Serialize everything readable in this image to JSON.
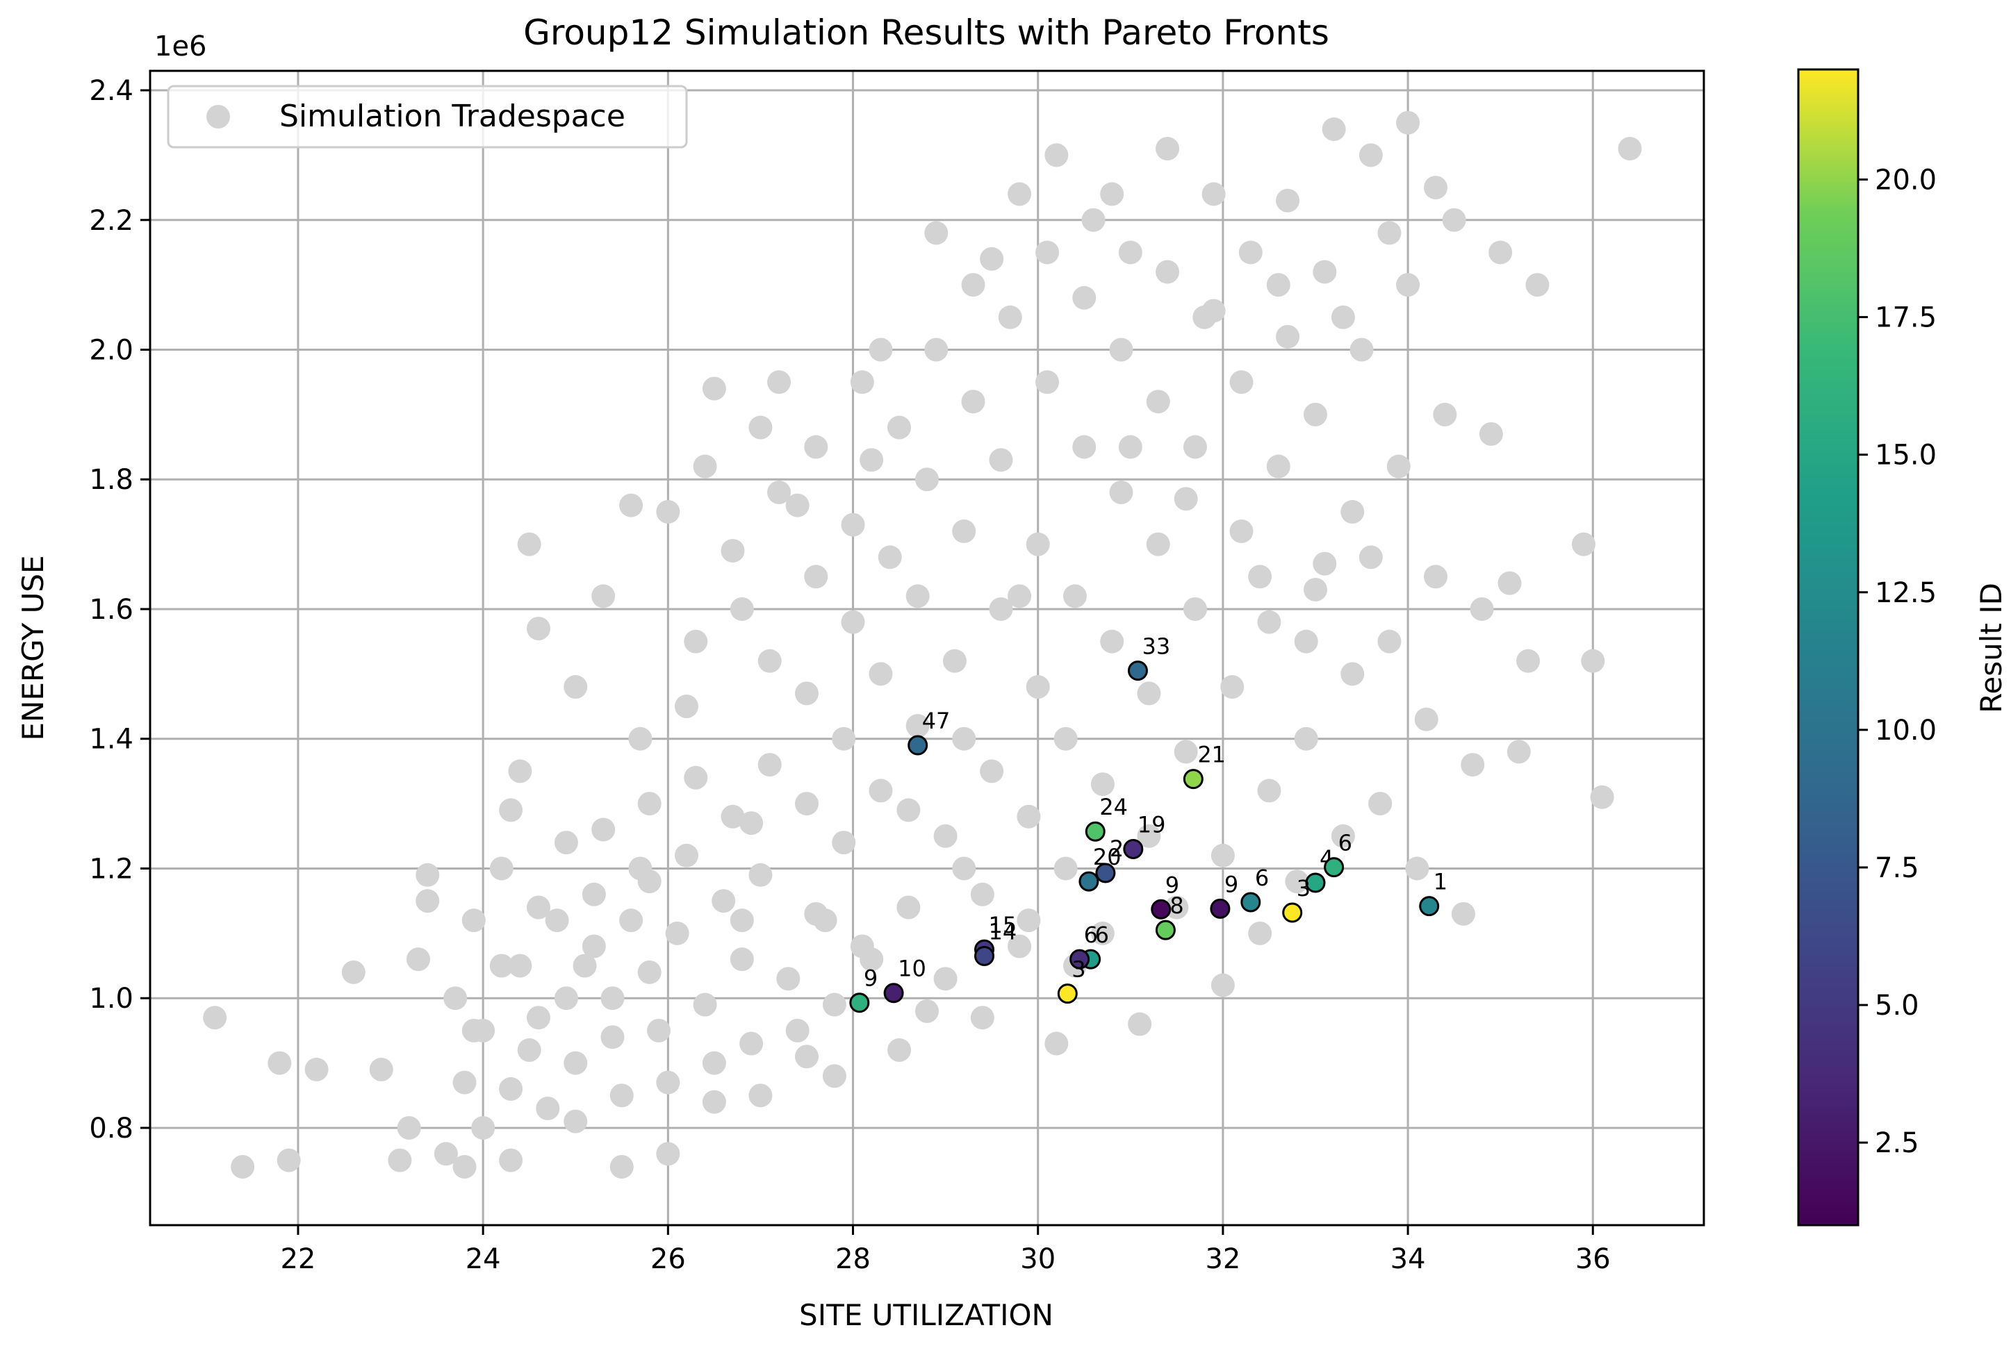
{
  "chart_data": {
    "type": "scatter",
    "title": "Group12 Simulation Results with Pareto Fronts",
    "xlabel": "SITE UTILIZATION",
    "ylabel": "ENERGY USE",
    "y_offset_label": "1e6",
    "xlim": [
      20.4,
      37.2
    ],
    "ylim": [
      0.65,
      2.43
    ],
    "x_ticks": [
      22,
      24,
      26,
      28,
      30,
      32,
      34,
      36
    ],
    "x_tick_labels": [
      "22",
      "24",
      "26",
      "28",
      "30",
      "32",
      "34",
      "36"
    ],
    "y_ticks": [
      0.8,
      1.0,
      1.2,
      1.4,
      1.6,
      1.8,
      2.0,
      2.2,
      2.4
    ],
    "y_tick_labels": [
      "0.8",
      "1.0",
      "1.2",
      "1.4",
      "1.6",
      "1.8",
      "2.0",
      "2.2",
      "2.4"
    ],
    "grid": true,
    "legend": {
      "position": "top-left",
      "entries": [
        "Simulation Tradespace"
      ]
    },
    "background_series": {
      "name": "Simulation Tradespace",
      "color": "#d3d3d3",
      "points": [
        [
          21.1,
          0.97
        ],
        [
          21.4,
          0.74
        ],
        [
          21.8,
          0.9
        ],
        [
          21.9,
          0.75
        ],
        [
          22.2,
          0.89
        ],
        [
          22.6,
          1.04
        ],
        [
          22.9,
          0.89
        ],
        [
          23.1,
          0.75
        ],
        [
          23.2,
          0.8
        ],
        [
          23.4,
          1.19
        ],
        [
          23.4,
          1.15
        ],
        [
          23.3,
          1.06
        ],
        [
          23.6,
          0.76
        ],
        [
          23.7,
          1.0
        ],
        [
          23.8,
          0.87
        ],
        [
          23.8,
          0.74
        ],
        [
          23.9,
          1.12
        ],
        [
          24.0,
          0.95
        ],
        [
          24.0,
          0.8
        ],
        [
          24.2,
          1.2
        ],
        [
          24.3,
          0.86
        ],
        [
          24.3,
          0.75
        ],
        [
          24.3,
          1.29
        ],
        [
          24.4,
          1.35
        ],
        [
          24.4,
          1.05
        ],
        [
          24.5,
          0.92
        ],
        [
          24.6,
          1.14
        ],
        [
          24.6,
          0.97
        ],
        [
          24.7,
          0.83
        ],
        [
          24.8,
          1.12
        ],
        [
          24.9,
          1.0
        ],
        [
          25.0,
          0.9
        ],
        [
          25.0,
          0.81
        ],
        [
          25.1,
          1.05
        ],
        [
          25.2,
          1.16
        ],
        [
          25.3,
          1.26
        ],
        [
          25.2,
          1.08
        ],
        [
          25.4,
          1.0
        ],
        [
          25.4,
          0.94
        ],
        [
          25.5,
          0.85
        ],
        [
          25.5,
          0.74
        ],
        [
          25.6,
          1.12
        ],
        [
          25.7,
          1.2
        ],
        [
          25.7,
          1.4
        ],
        [
          25.8,
          1.3
        ],
        [
          25.8,
          1.04
        ],
        [
          25.9,
          0.95
        ],
        [
          26.0,
          0.87
        ],
        [
          26.0,
          0.76
        ],
        [
          26.1,
          1.1
        ],
        [
          26.2,
          1.22
        ],
        [
          26.2,
          1.45
        ],
        [
          26.3,
          1.55
        ],
        [
          26.3,
          1.34
        ],
        [
          26.4,
          0.99
        ],
        [
          26.5,
          0.9
        ],
        [
          26.5,
          0.84
        ],
        [
          26.6,
          1.15
        ],
        [
          26.7,
          1.28
        ],
        [
          26.7,
          1.69
        ],
        [
          26.8,
          1.6
        ],
        [
          26.8,
          1.06
        ],
        [
          26.9,
          0.93
        ],
        [
          27.0,
          0.85
        ],
        [
          27.0,
          1.19
        ],
        [
          27.1,
          1.36
        ],
        [
          27.1,
          1.52
        ],
        [
          27.2,
          1.78
        ],
        [
          27.2,
          1.95
        ],
        [
          27.3,
          1.03
        ],
        [
          27.4,
          0.95
        ],
        [
          27.5,
          1.3
        ],
        [
          27.5,
          1.47
        ],
        [
          27.6,
          1.65
        ],
        [
          27.6,
          1.85
        ],
        [
          27.7,
          1.12
        ],
        [
          27.8,
          0.99
        ],
        [
          27.8,
          0.88
        ],
        [
          27.9,
          1.24
        ],
        [
          27.9,
          1.4
        ],
        [
          28.0,
          1.58
        ],
        [
          28.0,
          1.73
        ],
        [
          28.1,
          1.95
        ],
        [
          28.2,
          1.06
        ],
        [
          28.3,
          1.32
        ],
        [
          28.3,
          1.5
        ],
        [
          28.4,
          1.68
        ],
        [
          28.5,
          1.88
        ],
        [
          28.5,
          0.92
        ],
        [
          28.6,
          1.14
        ],
        [
          28.7,
          1.42
        ],
        [
          28.7,
          1.62
        ],
        [
          28.8,
          1.8
        ],
        [
          28.9,
          2.0
        ],
        [
          28.9,
          2.18
        ],
        [
          29.0,
          1.03
        ],
        [
          29.0,
          1.25
        ],
        [
          29.1,
          1.52
        ],
        [
          29.2,
          1.72
        ],
        [
          29.3,
          1.92
        ],
        [
          29.3,
          2.1
        ],
        [
          29.4,
          0.97
        ],
        [
          29.4,
          1.16
        ],
        [
          29.5,
          1.35
        ],
        [
          29.6,
          1.6
        ],
        [
          29.6,
          1.83
        ],
        [
          29.7,
          2.05
        ],
        [
          29.8,
          2.24
        ],
        [
          29.8,
          1.08
        ],
        [
          29.9,
          1.28
        ],
        [
          30.0,
          1.48
        ],
        [
          30.0,
          1.7
        ],
        [
          30.1,
          1.95
        ],
        [
          30.1,
          2.15
        ],
        [
          30.2,
          0.93
        ],
        [
          30.3,
          1.2
        ],
        [
          30.3,
          1.4
        ],
        [
          30.4,
          1.62
        ],
        [
          30.5,
          1.85
        ],
        [
          30.5,
          2.08
        ],
        [
          30.6,
          2.2
        ],
        [
          30.7,
          1.1
        ],
        [
          30.7,
          1.33
        ],
        [
          30.8,
          1.55
        ],
        [
          30.9,
          1.78
        ],
        [
          30.9,
          2.0
        ],
        [
          31.0,
          2.15
        ],
        [
          31.1,
          0.96
        ],
        [
          31.2,
          1.25
        ],
        [
          31.2,
          1.47
        ],
        [
          31.3,
          1.7
        ],
        [
          31.3,
          1.92
        ],
        [
          31.4,
          2.12
        ],
        [
          31.4,
          2.31
        ],
        [
          31.5,
          1.14
        ],
        [
          31.6,
          1.38
        ],
        [
          31.7,
          1.6
        ],
        [
          31.7,
          1.85
        ],
        [
          31.8,
          2.05
        ],
        [
          31.9,
          2.24
        ],
        [
          32.0,
          1.02
        ],
        [
          32.0,
          1.22
        ],
        [
          32.1,
          1.48
        ],
        [
          32.2,
          1.72
        ],
        [
          32.2,
          1.95
        ],
        [
          32.3,
          2.15
        ],
        [
          32.4,
          1.1
        ],
        [
          32.5,
          1.32
        ],
        [
          32.5,
          1.58
        ],
        [
          32.6,
          1.82
        ],
        [
          32.7,
          2.02
        ],
        [
          32.7,
          2.23
        ],
        [
          32.8,
          1.18
        ],
        [
          32.9,
          1.4
        ],
        [
          33.0,
          1.63
        ],
        [
          33.0,
          1.9
        ],
        [
          33.1,
          2.12
        ],
        [
          33.2,
          2.34
        ],
        [
          33.3,
          1.25
        ],
        [
          33.4,
          1.5
        ],
        [
          33.4,
          1.75
        ],
        [
          33.5,
          2.0
        ],
        [
          33.6,
          2.3
        ],
        [
          33.7,
          1.3
        ],
        [
          33.8,
          1.55
        ],
        [
          33.9,
          1.82
        ],
        [
          34.0,
          2.1
        ],
        [
          34.0,
          2.35
        ],
        [
          34.1,
          1.2
        ],
        [
          34.2,
          1.43
        ],
        [
          34.3,
          1.65
        ],
        [
          34.4,
          1.9
        ],
        [
          34.5,
          2.2
        ],
        [
          34.6,
          1.13
        ],
        [
          34.7,
          1.36
        ],
        [
          34.8,
          1.6
        ],
        [
          34.9,
          1.87
        ],
        [
          35.0,
          2.15
        ],
        [
          35.1,
          1.64
        ],
        [
          35.2,
          1.38
        ],
        [
          35.3,
          1.52
        ],
        [
          35.4,
          2.1
        ],
        [
          35.9,
          1.7
        ],
        [
          36.0,
          1.52
        ],
        [
          36.1,
          1.31
        ],
        [
          36.4,
          2.31
        ],
        [
          24.6,
          1.57
        ],
        [
          25.0,
          1.48
        ],
        [
          25.3,
          1.62
        ],
        [
          24.5,
          1.7
        ],
        [
          25.6,
          1.76
        ],
        [
          26.0,
          1.75
        ],
        [
          26.5,
          1.94
        ],
        [
          26.4,
          1.82
        ],
        [
          27.0,
          1.88
        ],
        [
          27.4,
          1.76
        ],
        [
          28.3,
          2.0
        ],
        [
          28.2,
          1.83
        ],
        [
          26.9,
          1.27
        ],
        [
          27.6,
          1.13
        ],
        [
          28.6,
          1.29
        ],
        [
          29.2,
          1.4
        ],
        [
          29.8,
          1.62
        ],
        [
          30.4,
          1.05
        ],
        [
          31.0,
          1.85
        ],
        [
          31.6,
          1.77
        ],
        [
          32.4,
          1.65
        ],
        [
          33.1,
          1.67
        ],
        [
          33.6,
          1.68
        ],
        [
          32.9,
          1.55
        ],
        [
          29.5,
          2.14
        ],
        [
          30.2,
          2.3
        ],
        [
          30.8,
          2.24
        ],
        [
          31.9,
          2.06
        ],
        [
          32.6,
          2.1
        ],
        [
          33.3,
          2.05
        ],
        [
          33.8,
          2.18
        ],
        [
          34.3,
          2.25
        ],
        [
          29.2,
          1.2
        ],
        [
          29.9,
          1.12
        ],
        [
          28.8,
          0.98
        ],
        [
          28.1,
          1.08
        ],
        [
          27.5,
          0.91
        ],
        [
          26.8,
          1.12
        ],
        [
          25.8,
          1.18
        ],
        [
          24.9,
          1.24
        ],
        [
          24.2,
          1.05
        ],
        [
          23.9,
          0.95
        ]
      ]
    },
    "colorbar": {
      "label": "Result ID",
      "range": [
        1,
        22
      ],
      "ticks": [
        2.5,
        5.0,
        7.5,
        10.0,
        12.5,
        15.0,
        17.5,
        20.0
      ],
      "tick_labels": [
        "2.5",
        "5.0",
        "7.5",
        "10.0",
        "12.5",
        "15.0",
        "17.5",
        "20.0"
      ]
    },
    "pareto_points": [
      {
        "x": 34.23,
        "y": 1.142,
        "result_id": 12,
        "label": "1"
      },
      {
        "x": 33.0,
        "y": 1.178,
        "result_id": 15,
        "label": "4"
      },
      {
        "x": 33.2,
        "y": 1.202,
        "result_id": 16,
        "label": "6"
      },
      {
        "x": 32.75,
        "y": 1.132,
        "result_id": 22,
        "label": "3"
      },
      {
        "x": 32.3,
        "y": 1.148,
        "result_id": 12,
        "label": "6"
      },
      {
        "x": 31.97,
        "y": 1.138,
        "result_id": 2,
        "label": "9"
      },
      {
        "x": 31.33,
        "y": 1.137,
        "result_id": 1.5,
        "label": "9"
      },
      {
        "x": 31.38,
        "y": 1.105,
        "result_id": 19,
        "label": "8"
      },
      {
        "x": 31.68,
        "y": 1.338,
        "result_id": 20,
        "label": "21"
      },
      {
        "x": 31.08,
        "y": 1.505,
        "result_id": 9,
        "label": "33"
      },
      {
        "x": 28.7,
        "y": 1.39,
        "result_id": 9,
        "label": "47"
      },
      {
        "x": 30.62,
        "y": 1.257,
        "result_id": 18,
        "label": "24"
      },
      {
        "x": 31.03,
        "y": 1.23,
        "result_id": 4,
        "label": "19"
      },
      {
        "x": 30.73,
        "y": 1.193,
        "result_id": 7,
        "label": "2"
      },
      {
        "x": 30.55,
        "y": 1.18,
        "result_id": 10,
        "label": "20"
      },
      {
        "x": 29.42,
        "y": 1.075,
        "result_id": 5,
        "label": "15"
      },
      {
        "x": 29.42,
        "y": 1.065,
        "result_id": 6,
        "label": "14"
      },
      {
        "x": 30.57,
        "y": 1.06,
        "result_id": 14,
        "label": "6"
      },
      {
        "x": 30.45,
        "y": 1.06,
        "result_id": 4,
        "label": "6"
      },
      {
        "x": 30.32,
        "y": 1.007,
        "result_id": 22,
        "label": "3"
      },
      {
        "x": 28.44,
        "y": 1.008,
        "result_id": 3,
        "label": "10"
      },
      {
        "x": 28.07,
        "y": 0.993,
        "result_id": 16,
        "label": "9"
      }
    ]
  }
}
